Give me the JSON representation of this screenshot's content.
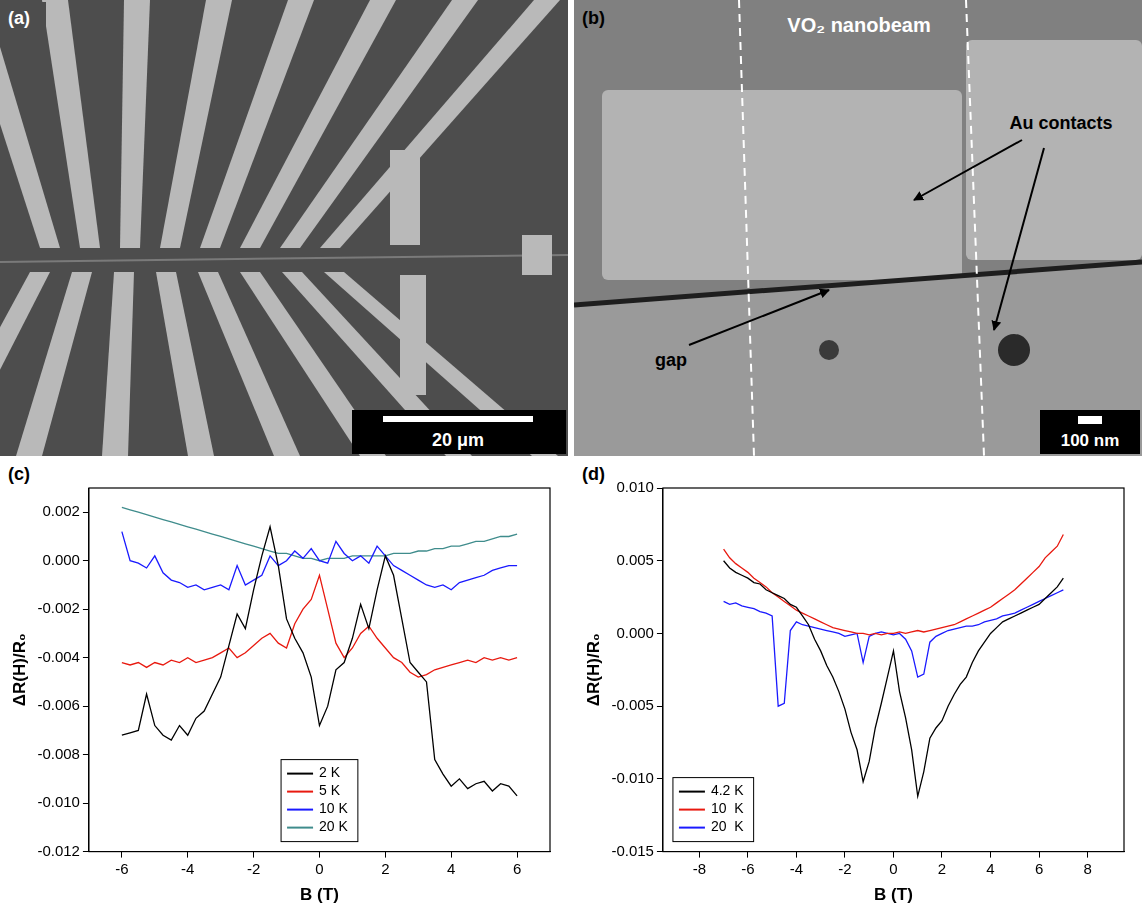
{
  "images": [
    {
      "label": "(a)",
      "scale_bar": "20 μm"
    },
    {
      "label": "(b)",
      "title": "VO₂ nanobeam",
      "annotations": [
        "Au contacts",
        "gap"
      ],
      "scale_bar": "100 nm"
    }
  ],
  "chart_data": [
    {
      "type": "line",
      "panel": "(c)",
      "x_label": "B (T)",
      "y_label": "ΔR(H)/R₀",
      "xlim": [
        -7,
        7
      ],
      "xticks": [
        -6,
        -4,
        -2,
        0,
        2,
        4,
        6
      ],
      "ylim": [
        -0.012,
        0.003
      ],
      "yticks": [
        -0.012,
        {
          "value": -0.01,
          "label": "-0.010"
        },
        -0.008,
        -0.006,
        -0.004,
        -0.002,
        {
          "value": 0,
          "label": "0.000"
        },
        0.002
      ],
      "grid": false,
      "legend": "lower center",
      "x": [
        -6,
        -5.75,
        -5.5,
        -5.25,
        -5,
        -4.75,
        -4.5,
        -4.25,
        -4,
        -3.75,
        -3.5,
        -3.25,
        -3,
        -2.75,
        -2.5,
        -2.25,
        -2,
        -1.75,
        -1.5,
        -1.25,
        -1,
        -0.75,
        -0.5,
        -0.25,
        0,
        0.25,
        0.5,
        0.75,
        1,
        1.25,
        1.5,
        1.75,
        2,
        2.25,
        2.5,
        2.75,
        3,
        3.25,
        3.5,
        3.75,
        4,
        4.25,
        4.5,
        4.75,
        5,
        5.25,
        5.5,
        5.75,
        6
      ],
      "series": [
        {
          "name": "2 K",
          "color": "#000000",
          "values": [
            -0.0072,
            -0.0071,
            -0.007,
            -0.0055,
            -0.0068,
            -0.0072,
            -0.0074,
            -0.0068,
            -0.0072,
            -0.0065,
            -0.0062,
            -0.0055,
            -0.0048,
            -0.0035,
            -0.0022,
            -0.0028,
            -0.0012,
            0.0002,
            0.0014,
            -0.0002,
            -0.0024,
            -0.0032,
            -0.0038,
            -0.0048,
            -0.0068,
            -0.006,
            -0.0045,
            -0.0042,
            -0.0032,
            -0.0018,
            -0.0028,
            -0.0012,
            0.0002,
            -0.0006,
            -0.0024,
            -0.0042,
            -0.0046,
            -0.005,
            -0.0082,
            -0.0088,
            -0.0093,
            -0.009,
            -0.0094,
            -0.0092,
            -0.0091,
            -0.0095,
            -0.0092,
            -0.0093,
            -0.0097
          ]
        },
        {
          "name": "5 K",
          "color": "#e8190f",
          "values": [
            -0.0042,
            -0.0043,
            -0.0042,
            -0.0044,
            -0.0042,
            -0.0043,
            -0.0041,
            -0.0042,
            -0.004,
            -0.0042,
            -0.0041,
            -0.004,
            -0.0038,
            -0.0036,
            -0.004,
            -0.0038,
            -0.0035,
            -0.0032,
            -0.003,
            -0.0034,
            -0.0036,
            -0.0026,
            -0.002,
            -0.0016,
            -0.0006,
            -0.002,
            -0.0034,
            -0.004,
            -0.0036,
            -0.003,
            -0.0027,
            -0.0032,
            -0.0036,
            -0.004,
            -0.0042,
            -0.0046,
            -0.0048,
            -0.0047,
            -0.0045,
            -0.0044,
            -0.0043,
            -0.0042,
            -0.0041,
            -0.0042,
            -0.004,
            -0.0041,
            -0.004,
            -0.0041,
            -0.004
          ]
        },
        {
          "name": "10 K",
          "color": "#1a1aff",
          "values": [
            0.0012,
            0,
            -0.0001,
            -0.0003,
            0.0002,
            -0.0005,
            -0.0008,
            -0.0009,
            -0.0011,
            -0.001,
            -0.0012,
            -0.0011,
            -0.001,
            -0.0012,
            -0.0002,
            -0.001,
            -0.0008,
            -0.0006,
            0.0002,
            -0.0002,
            0,
            0.0004,
            0.0001,
            0.0005,
            0,
            -0.0001,
            0.0008,
            0.0003,
            0,
            0.0002,
            -0.0001,
            0.0006,
            0.0002,
            -0.0002,
            -0.0004,
            -0.0006,
            -0.0008,
            -0.001,
            -0.0011,
            -0.001,
            -0.0012,
            -0.0009,
            -0.0008,
            -0.0007,
            -0.0006,
            -0.0004,
            -0.0003,
            -0.0002,
            -0.0002
          ]
        },
        {
          "name": "20 K",
          "color": "#3f8c8c",
          "values": [
            0.0022,
            0.0021,
            0.002,
            0.0019,
            0.0018,
            0.0017,
            0.0016,
            0.0015,
            0.0014,
            0.0013,
            0.0012,
            0.0011,
            0.001,
            0.0009,
            0.0008,
            0.0007,
            0.0006,
            0.0005,
            0.0004,
            0.0003,
            0.0003,
            0.0002,
            0.0001,
            0.0001,
            0,
            0.0001,
            0.0001,
            0.0001,
            0.0002,
            0.0002,
            0.0002,
            0.0002,
            0.0002,
            0.0003,
            0.0003,
            0.0003,
            0.0004,
            0.0004,
            0.0005,
            0.0005,
            0.0006,
            0.0006,
            0.0007,
            0.0008,
            0.0008,
            0.0009,
            0.001,
            0.001,
            0.0011
          ]
        }
      ]
    },
    {
      "type": "line",
      "panel": "(d)",
      "x_label": "B (T)",
      "y_label": "ΔR(H)/R₀",
      "xlim": [
        -9.5,
        9.5
      ],
      "xticks": [
        -8,
        -6,
        -4,
        -2,
        0,
        2,
        4,
        6,
        8
      ],
      "ylim": [
        -0.015,
        0.01
      ],
      "yticks": [
        -0.015,
        {
          "value": -0.01,
          "label": "-0.010"
        },
        -0.005,
        {
          "value": 0,
          "label": "0.000"
        },
        0.005,
        {
          "value": 0.01,
          "label": "0.010"
        }
      ],
      "grid": false,
      "legend": "lower left",
      "x": [
        -7,
        -6.75,
        -6.5,
        -6.25,
        -6,
        -5.75,
        -5.5,
        -5.25,
        -5,
        -4.75,
        -4.5,
        -4.25,
        -4,
        -3.75,
        -3.5,
        -3.25,
        -3,
        -2.75,
        -2.5,
        -2.25,
        -2,
        -1.75,
        -1.5,
        -1.25,
        -1,
        -0.75,
        -0.5,
        -0.25,
        0,
        0.25,
        0.5,
        0.75,
        1,
        1.25,
        1.5,
        1.75,
        2,
        2.25,
        2.5,
        2.75,
        3,
        3.25,
        3.5,
        3.75,
        4,
        4.25,
        4.5,
        4.75,
        5,
        5.25,
        5.5,
        5.75,
        6,
        6.25,
        6.5,
        6.75,
        7
      ],
      "series": [
        {
          "name": "4.2 K",
          "color": "#000000",
          "values": [
            0.005,
            0.0045,
            0.0042,
            0.004,
            0.0038,
            0.0035,
            0.0034,
            0.003,
            0.0028,
            0.0026,
            0.0024,
            0.002,
            0.0018,
            0.0012,
            0.0006,
            -0.0004,
            -0.0012,
            -0.0022,
            -0.003,
            -0.004,
            -0.0052,
            -0.0068,
            -0.008,
            -0.0102,
            -0.0088,
            -0.0065,
            -0.0048,
            -0.003,
            -0.0012,
            -0.004,
            -0.0058,
            -0.008,
            -0.0112,
            -0.0095,
            -0.0072,
            -0.0065,
            -0.006,
            -0.005,
            -0.0042,
            -0.0035,
            -0.003,
            -0.002,
            -0.0012,
            -0.0006,
            0,
            0.0004,
            0.0008,
            0.001,
            0.0012,
            0.0014,
            0.0016,
            0.0018,
            0.002,
            0.0024,
            0.0028,
            0.0032,
            0.0038
          ]
        },
        {
          "name": "10  K",
          "color": "#e8190f",
          "values": [
            0.0058,
            0.0052,
            0.0048,
            0.0045,
            0.0042,
            0.0038,
            0.0035,
            0.0032,
            0.0028,
            0.0025,
            0.0022,
            0.0019,
            0.0016,
            0.0014,
            0.0012,
            0.001,
            0.0008,
            0.0006,
            0.0004,
            0.0003,
            0.0002,
            0.0001,
            0,
            0,
            -0.0001,
            0,
            -0.0001,
            0,
            0,
            0.0001,
            0,
            0.0001,
            0.0002,
            0.0001,
            0.0002,
            0.0003,
            0.0004,
            0.0005,
            0.0006,
            0.0008,
            0.001,
            0.0012,
            0.0014,
            0.0016,
            0.0018,
            0.0021,
            0.0024,
            0.0027,
            0.003,
            0.0034,
            0.0038,
            0.0042,
            0.0046,
            0.0052,
            0.0056,
            0.006,
            0.0068
          ]
        },
        {
          "name": "20  K",
          "color": "#1a1aff",
          "values": [
            0.0022,
            0.002,
            0.0021,
            0.0019,
            0.0018,
            0.0017,
            0.0015,
            0.0014,
            0.0012,
            -0.005,
            -0.0048,
            0.0002,
            0.0008,
            0.0006,
            0.0005,
            0.0004,
            0.0003,
            0.0002,
            0.0001,
            0,
            -0.0002,
            -0.0001,
            0,
            -0.002,
            -0.0002,
            0,
            0.0001,
            0,
            -0.0001,
            0,
            -0.0004,
            -0.0012,
            -0.003,
            -0.0028,
            -0.0006,
            -0.0002,
            0,
            0.0002,
            0.0003,
            0.0004,
            0.0005,
            0.0005,
            0.0006,
            0.0008,
            0.0009,
            0.001,
            0.0012,
            0.0013,
            0.0014,
            0.0016,
            0.0018,
            0.002,
            0.0022,
            0.0024,
            0.0026,
            0.0028,
            0.003
          ]
        }
      ]
    }
  ]
}
